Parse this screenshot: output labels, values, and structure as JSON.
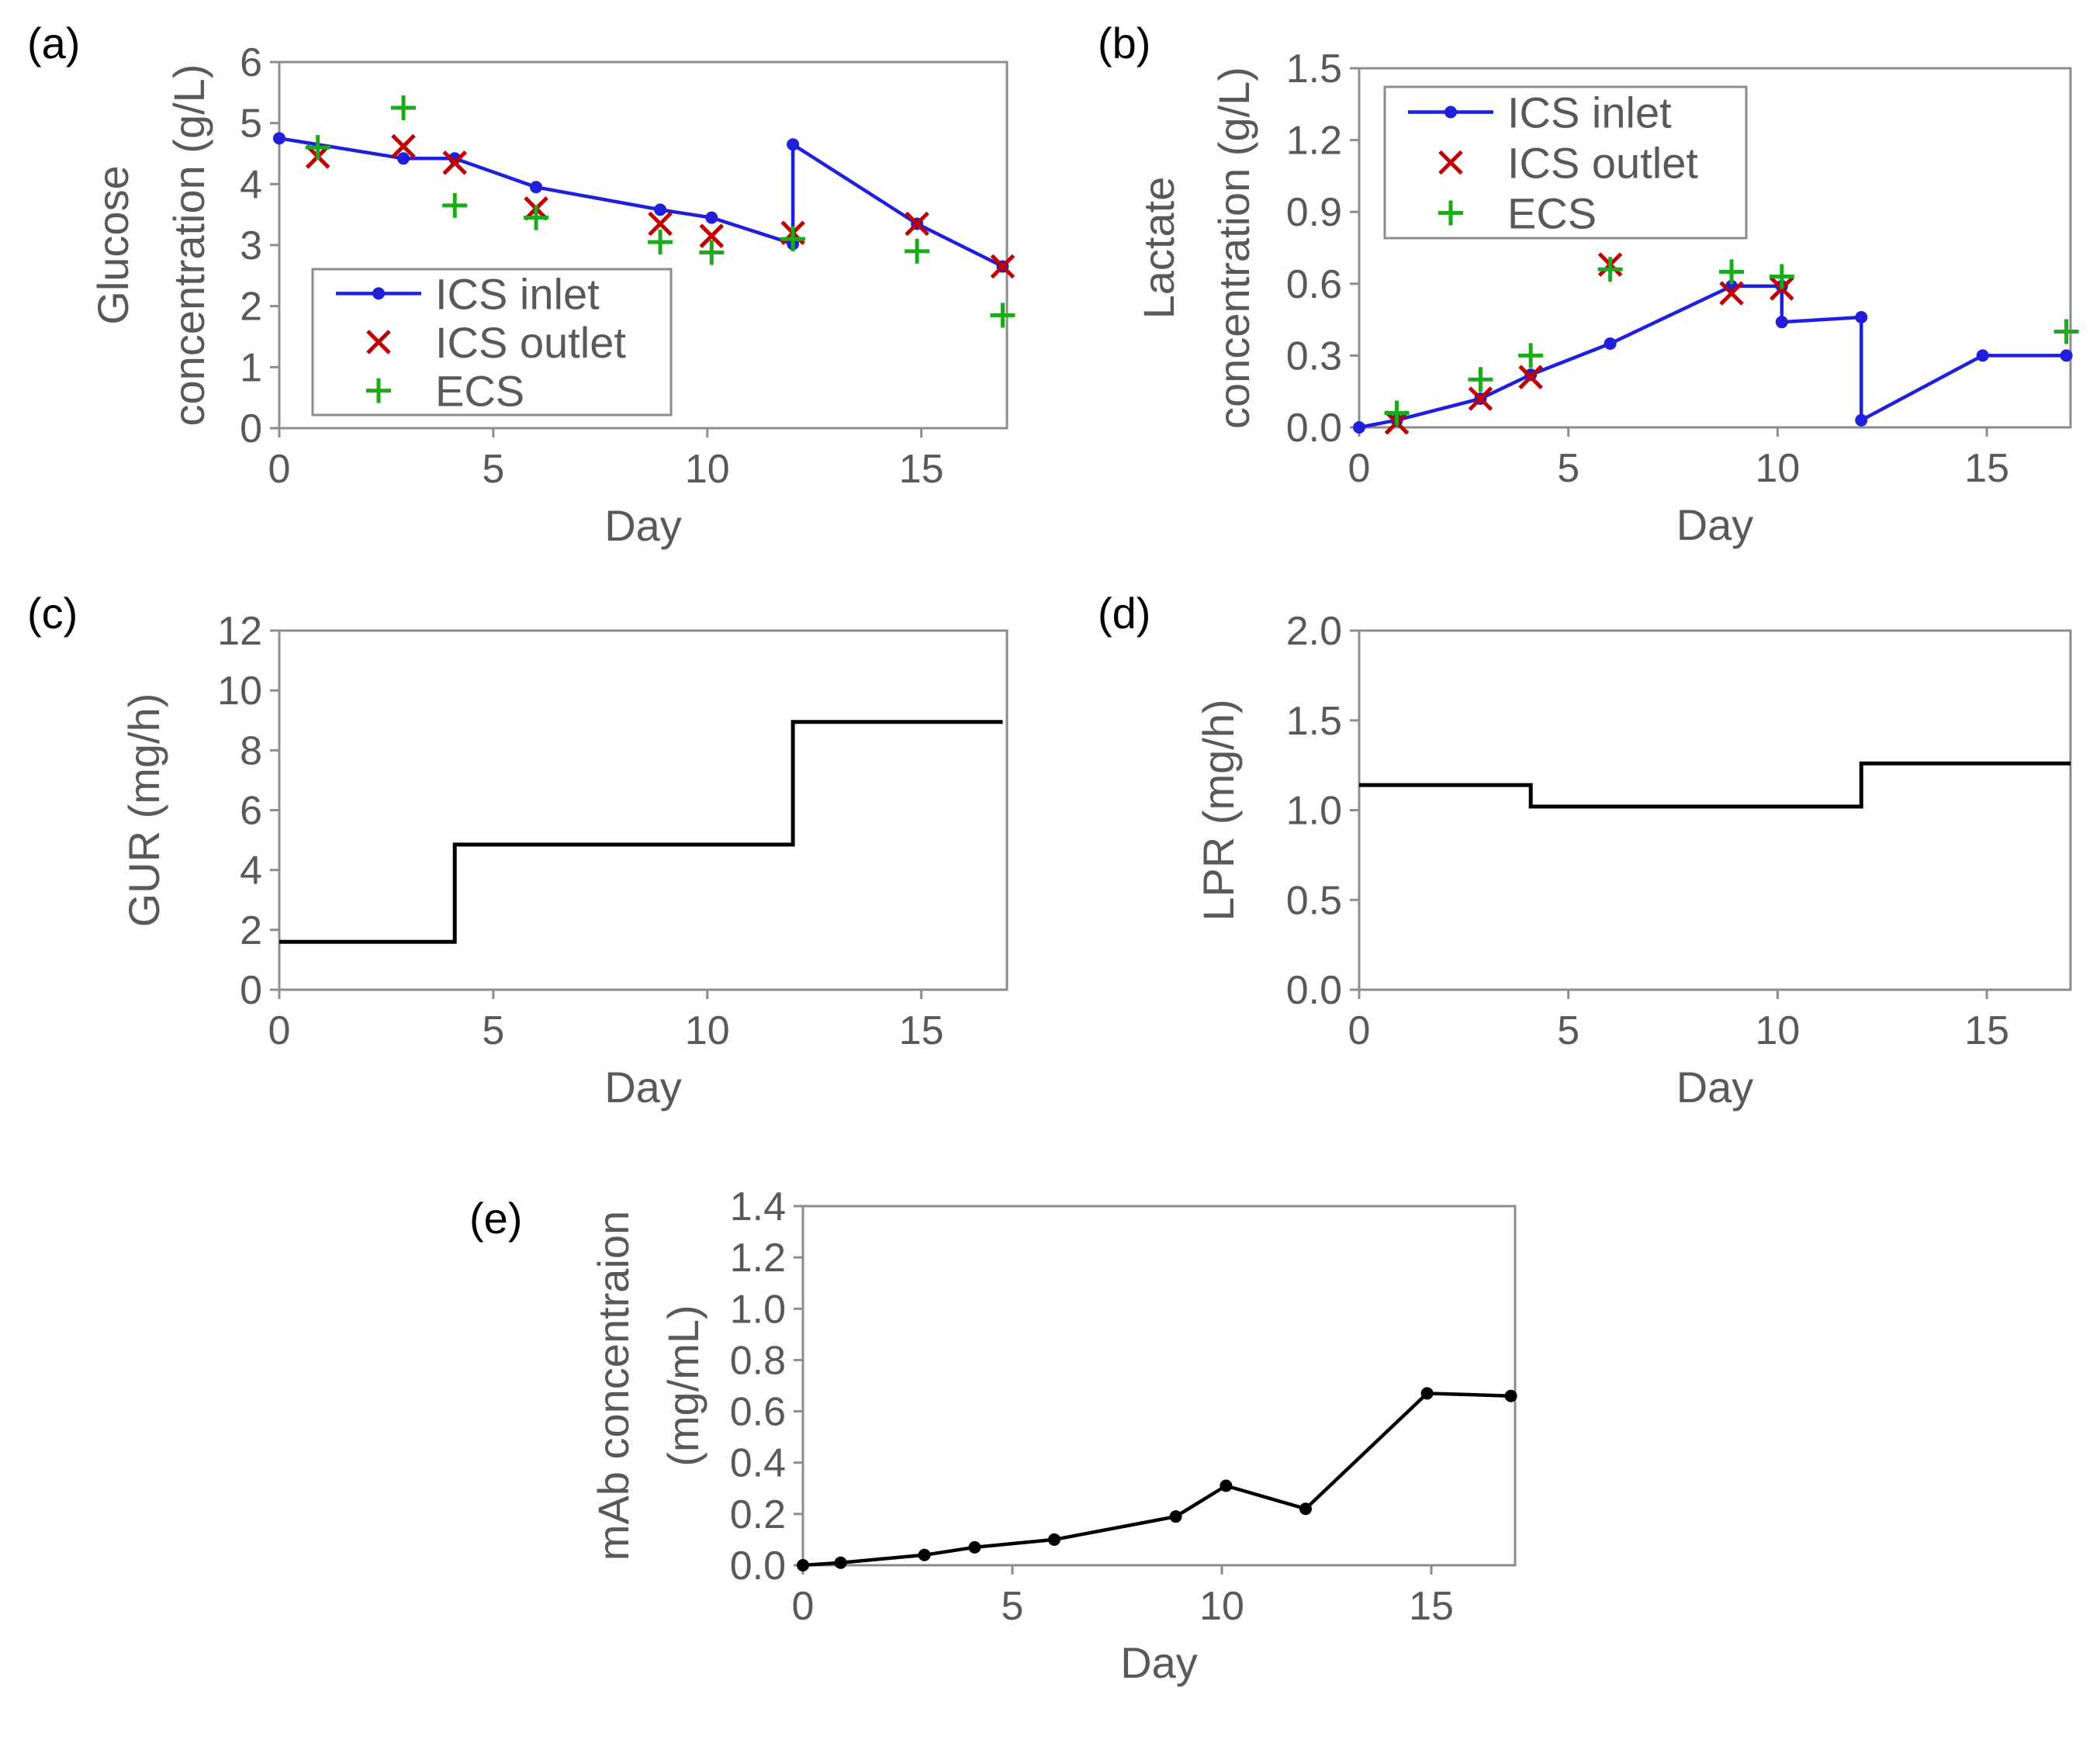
{
  "colors": {
    "inlet": "#1f1fdc",
    "outlet": "#c00000",
    "ecs": "#1aaa1a",
    "line": "#000000",
    "axis": "#8c8c8c",
    "text": "#595959"
  },
  "chart_data": [
    {
      "id": "a",
      "panel_label": "(a)",
      "type": "line",
      "title": "",
      "xlabel": "Day",
      "ylabel": [
        "Glucose",
        "concentration (g/L)"
      ],
      "xlim": [
        0,
        17
      ],
      "ylim": [
        0,
        6
      ],
      "xticks": [
        0,
        5,
        10,
        15
      ],
      "yticks": [
        0,
        1,
        2,
        3,
        4,
        5,
        6
      ],
      "ytick_labels": [
        "0",
        "1",
        "2",
        "3",
        "4",
        "5",
        "6"
      ],
      "grid": false,
      "legend": {
        "position": "bottom-left",
        "entries": [
          "ICS inlet",
          "ICS outlet",
          "ECS"
        ]
      },
      "series": [
        {
          "name": "ICS inlet",
          "style": "line-dot",
          "color": "#1f1fdc",
          "x": [
            0,
            2.9,
            4.1,
            6,
            8.9,
            10.1,
            12,
            12,
            14.9,
            16.9
          ],
          "y": [
            4.75,
            4.42,
            4.42,
            3.95,
            3.58,
            3.45,
            3.02,
            4.65,
            3.35,
            2.65
          ]
        },
        {
          "name": "ICS outlet",
          "style": "x",
          "color": "#c00000",
          "x": [
            0.9,
            2.9,
            4.1,
            6,
            8.9,
            10.1,
            12,
            14.9,
            16.9
          ],
          "y": [
            4.45,
            4.62,
            4.35,
            3.6,
            3.35,
            3.15,
            3.2,
            3.35,
            2.65
          ]
        },
        {
          "name": "ECS",
          "style": "plus",
          "color": "#1aaa1a",
          "x": [
            0.9,
            2.9,
            4.1,
            6,
            8.9,
            10.1,
            12,
            14.9,
            16.9
          ],
          "y": [
            4.6,
            5.25,
            3.65,
            3.45,
            3.05,
            2.88,
            3.1,
            2.9,
            1.85
          ]
        }
      ]
    },
    {
      "id": "b",
      "panel_label": "(b)",
      "type": "line",
      "title": "",
      "xlabel": "Day",
      "ylabel": [
        "Lactate",
        "concentration (g/L)"
      ],
      "xlim": [
        0,
        17
      ],
      "ylim": [
        0,
        1.5
      ],
      "xticks": [
        0,
        5,
        10,
        15
      ],
      "yticks": [
        0,
        0.3,
        0.6,
        0.9,
        1.2,
        1.5
      ],
      "ytick_labels": [
        "0.0",
        "0.3",
        "0.6",
        "0.9",
        "1.2",
        "1.5"
      ],
      "grid": false,
      "legend": {
        "position": "top-left",
        "entries": [
          "ICS inlet",
          "ICS outlet",
          "ECS"
        ]
      },
      "series": [
        {
          "name": "ICS inlet",
          "style": "line-dot",
          "color": "#1f1fdc",
          "x": [
            0,
            0.9,
            2.9,
            4.1,
            6,
            8.9,
            10.1,
            10.1,
            12,
            12,
            14.9,
            16.9
          ],
          "y": [
            0.0,
            0.03,
            0.12,
            0.22,
            0.35,
            0.59,
            0.59,
            0.44,
            0.46,
            0.03,
            0.3,
            0.3
          ]
        },
        {
          "name": "ICS outlet",
          "style": "x",
          "color": "#c00000",
          "x": [
            0.9,
            2.9,
            4.1,
            6,
            8.9,
            10.1
          ],
          "y": [
            0.02,
            0.12,
            0.21,
            0.68,
            0.56,
            0.58
          ]
        },
        {
          "name": "ECS",
          "style": "plus",
          "color": "#1aaa1a",
          "x": [
            0.9,
            2.9,
            4.1,
            6,
            8.9,
            10.1,
            16.9
          ],
          "y": [
            0.06,
            0.2,
            0.3,
            0.66,
            0.65,
            0.63,
            0.4
          ]
        }
      ]
    },
    {
      "id": "c",
      "panel_label": "(c)",
      "type": "line",
      "title": "",
      "xlabel": "Day",
      "ylabel": [
        "GUR (mg/h)"
      ],
      "xlim": [
        0,
        17
      ],
      "ylim": [
        0,
        12
      ],
      "xticks": [
        0,
        5,
        10,
        15
      ],
      "yticks": [
        0,
        2,
        4,
        6,
        8,
        10,
        12
      ],
      "ytick_labels": [
        "0",
        "2",
        "4",
        "6",
        "8",
        "10",
        "12"
      ],
      "grid": false,
      "legend": null,
      "series": [
        {
          "name": "GUR",
          "style": "step",
          "color": "#000000",
          "x": [
            0,
            4.1,
            4.1,
            12,
            12,
            16.9
          ],
          "y": [
            1.6,
            1.6,
            4.85,
            4.85,
            8.95,
            8.95
          ]
        }
      ]
    },
    {
      "id": "d",
      "panel_label": "(d)",
      "type": "line",
      "title": "",
      "xlabel": "Day",
      "ylabel": [
        "LPR (mg/h)"
      ],
      "xlim": [
        0,
        17
      ],
      "ylim": [
        0,
        2.0
      ],
      "xticks": [
        0,
        5,
        10,
        15
      ],
      "yticks": [
        0,
        0.5,
        1.0,
        1.5,
        2.0
      ],
      "ytick_labels": [
        "0.0",
        "0.5",
        "1.0",
        "1.5",
        "2.0"
      ],
      "grid": false,
      "legend": null,
      "series": [
        {
          "name": "LPR",
          "style": "step",
          "color": "#000000",
          "x": [
            0,
            4.1,
            4.1,
            12,
            12,
            17
          ],
          "y": [
            1.14,
            1.14,
            1.02,
            1.02,
            1.26,
            1.26
          ]
        }
      ]
    },
    {
      "id": "e",
      "panel_label": "(e)",
      "type": "line",
      "title": "",
      "xlabel": "Day",
      "ylabel": [
        "mAb concentraion",
        "(mg/mL)"
      ],
      "xlim": [
        0,
        17
      ],
      "ylim": [
        0,
        1.4
      ],
      "xticks": [
        0,
        5,
        10,
        15
      ],
      "yticks": [
        0,
        0.2,
        0.4,
        0.6,
        0.8,
        1.0,
        1.2,
        1.4
      ],
      "ytick_labels": [
        "0.0",
        "0.2",
        "0.4",
        "0.6",
        "0.8",
        "1.0",
        "1.2",
        "1.4"
      ],
      "grid": false,
      "legend": null,
      "series": [
        {
          "name": "mAb",
          "style": "line-dot",
          "color": "#000000",
          "x": [
            0,
            0.9,
            2.9,
            4.1,
            6,
            8.9,
            10.1,
            12,
            14.9,
            16.9
          ],
          "y": [
            0.0,
            0.01,
            0.04,
            0.07,
            0.1,
            0.19,
            0.31,
            0.22,
            0.67,
            0.66
          ]
        }
      ]
    }
  ]
}
